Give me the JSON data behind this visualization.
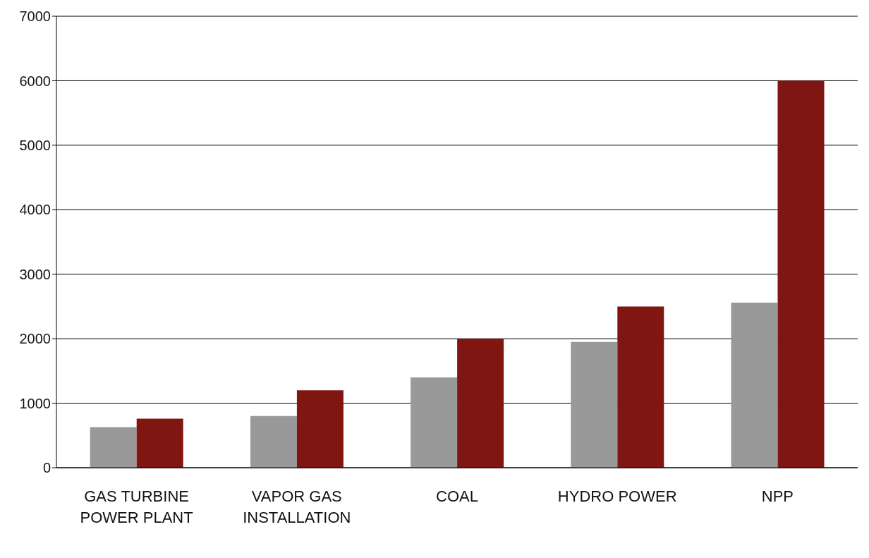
{
  "chart_data": {
    "type": "bar",
    "categories": [
      "GAS TURBINE POWER PLANT",
      "VAPOR GAS INSTALLATION",
      "COAL",
      "HYDRO POWER",
      "NPP"
    ],
    "series": [
      {
        "color": "#999999",
        "values": [
          630,
          800,
          1400,
          1950,
          2560
        ]
      },
      {
        "color": "#7f1612",
        "values": [
          760,
          1200,
          2000,
          2500,
          6000
        ]
      }
    ],
    "ylim": [
      0,
      7000
    ],
    "yticks": [
      0,
      1000,
      2000,
      3000,
      4000,
      5000,
      6000,
      7000
    ],
    "grid": "y",
    "legend": false
  }
}
